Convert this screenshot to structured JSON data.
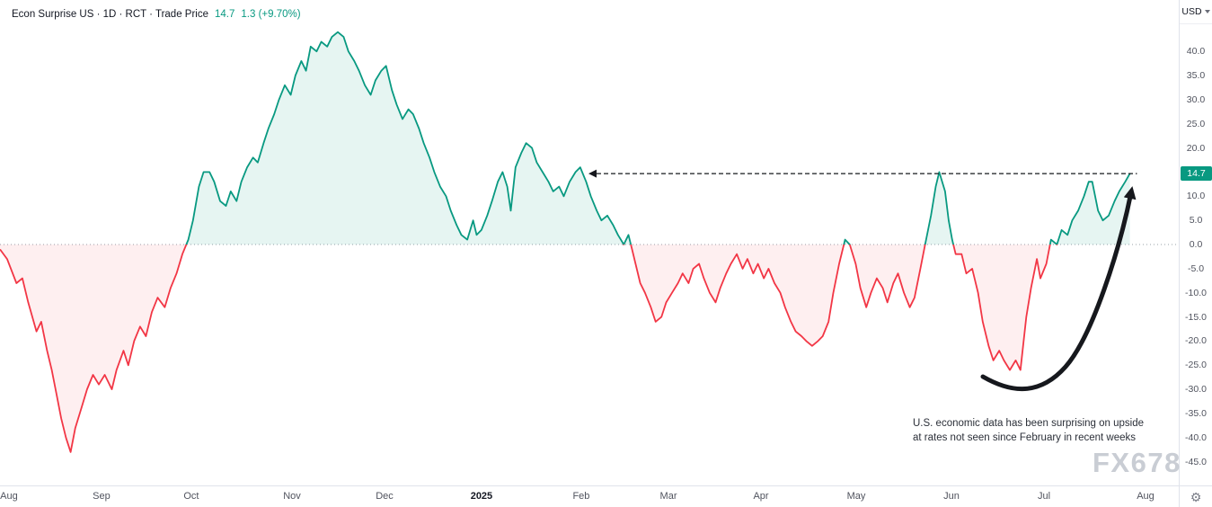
{
  "legend": {
    "title": "Econ Surprise US · 1D · RCT · Trade Price",
    "price": "14.7",
    "change": "1.3 (+9.70%)"
  },
  "price_axis": {
    "currency": "USD",
    "labels": [
      40,
      35,
      30,
      25,
      20,
      10,
      5,
      0,
      -5,
      -10,
      -15,
      -20,
      -25,
      -30,
      -35,
      -40,
      -45
    ]
  },
  "time_axis": {
    "labels": [
      {
        "label": "Aug",
        "pct": 0.76,
        "bold": false
      },
      {
        "label": "Sep",
        "pct": 8.61,
        "bold": false
      },
      {
        "label": "Oct",
        "pct": 16.23,
        "bold": false
      },
      {
        "label": "Nov",
        "pct": 24.77,
        "bold": false
      },
      {
        "label": "Dec",
        "pct": 32.62,
        "bold": false
      },
      {
        "label": "2025",
        "pct": 40.85,
        "bold": true
      },
      {
        "label": "Feb",
        "pct": 49.31,
        "bold": false
      },
      {
        "label": "Mar",
        "pct": 56.71,
        "bold": false
      },
      {
        "label": "Apr",
        "pct": 64.56,
        "bold": false
      },
      {
        "label": "May",
        "pct": 72.64,
        "bold": false
      },
      {
        "label": "Jun",
        "pct": 80.72,
        "bold": false
      },
      {
        "label": "Jul",
        "pct": 88.57,
        "bold": false
      },
      {
        "label": "Aug",
        "pct": 97.18,
        "bold": false
      }
    ]
  },
  "annotation": {
    "text": "U.S. economic data has been surprising on upside\nat rates not seen since February in recent weeks"
  },
  "watermark": "FX678",
  "colors": {
    "up": "#089981",
    "down": "#f23645",
    "up_fill": "rgba(8,153,129,0.10)",
    "down_fill": "rgba(242,54,69,0.08)"
  },
  "chart_data": {
    "type": "area",
    "style": "baseline",
    "title": "Econ Surprise US",
    "interval": "1D",
    "source": "RCT",
    "series_name": "Trade Price",
    "currency": "USD",
    "last_value": 14.7,
    "change": 1.3,
    "change_pct": "+9.70%",
    "baseline": 0,
    "ylim": [
      -47,
      46
    ],
    "y_ticks": [
      40,
      35,
      30,
      25,
      20,
      15,
      10,
      5,
      0,
      -5,
      -10,
      -15,
      -20,
      -25,
      -30,
      -35,
      -40,
      -45
    ],
    "x_range": [
      "Aug 2024",
      "Aug 2025"
    ],
    "x_unit": "percent_of_visible_time_axis",
    "hline": {
      "value": 14.7,
      "from_pct": 50,
      "to_pct": 96.6,
      "style": "dashed"
    },
    "points": [
      [
        0,
        -1
      ],
      [
        0.6,
        -3
      ],
      [
        1.4,
        -8
      ],
      [
        1.9,
        -7
      ],
      [
        2.4,
        -12
      ],
      [
        3.1,
        -18
      ],
      [
        3.5,
        -16
      ],
      [
        4,
        -22
      ],
      [
        4.4,
        -26
      ],
      [
        4.8,
        -31
      ],
      [
        5.2,
        -36
      ],
      [
        5.6,
        -40
      ],
      [
        6,
        -43
      ],
      [
        6.4,
        -38
      ],
      [
        6.9,
        -34
      ],
      [
        7.4,
        -30
      ],
      [
        7.9,
        -27
      ],
      [
        8.4,
        -29
      ],
      [
        8.9,
        -27
      ],
      [
        9.5,
        -30
      ],
      [
        9.9,
        -26
      ],
      [
        10.5,
        -22
      ],
      [
        10.9,
        -25
      ],
      [
        11.4,
        -20
      ],
      [
        11.9,
        -17
      ],
      [
        12.4,
        -19
      ],
      [
        12.9,
        -14
      ],
      [
        13.4,
        -11
      ],
      [
        14,
        -13
      ],
      [
        14.5,
        -9
      ],
      [
        15,
        -6
      ],
      [
        15.5,
        -2
      ],
      [
        16,
        1
      ],
      [
        16.4,
        5
      ],
      [
        16.9,
        12
      ],
      [
        17.3,
        15
      ],
      [
        17.8,
        15
      ],
      [
        18.2,
        13
      ],
      [
        18.7,
        9
      ],
      [
        19.2,
        8
      ],
      [
        19.6,
        11
      ],
      [
        20.1,
        9
      ],
      [
        20.5,
        13
      ],
      [
        21,
        16
      ],
      [
        21.5,
        18
      ],
      [
        21.9,
        17
      ],
      [
        22.4,
        21
      ],
      [
        22.8,
        24
      ],
      [
        23.3,
        27
      ],
      [
        23.7,
        30
      ],
      [
        24.2,
        33
      ],
      [
        24.7,
        31
      ],
      [
        25.1,
        35
      ],
      [
        25.6,
        38
      ],
      [
        26,
        36
      ],
      [
        26.4,
        41
      ],
      [
        26.9,
        40
      ],
      [
        27.3,
        42
      ],
      [
        27.8,
        41
      ],
      [
        28.2,
        43
      ],
      [
        28.7,
        44
      ],
      [
        29.2,
        43
      ],
      [
        29.6,
        40
      ],
      [
        30.1,
        38
      ],
      [
        30.5,
        36
      ],
      [
        31,
        33
      ],
      [
        31.5,
        31
      ],
      [
        31.9,
        34
      ],
      [
        32.4,
        36
      ],
      [
        32.8,
        37
      ],
      [
        33.3,
        32
      ],
      [
        33.7,
        29
      ],
      [
        34.2,
        26
      ],
      [
        34.7,
        28
      ],
      [
        35.1,
        27
      ],
      [
        35.6,
        24
      ],
      [
        36,
        21
      ],
      [
        36.5,
        18
      ],
      [
        36.9,
        15
      ],
      [
        37.4,
        12
      ],
      [
        37.9,
        10
      ],
      [
        38.3,
        7
      ],
      [
        38.8,
        4
      ],
      [
        39.2,
        2
      ],
      [
        39.7,
        1
      ],
      [
        40.2,
        5
      ],
      [
        40.5,
        2
      ],
      [
        40.9,
        3
      ],
      [
        41.4,
        6
      ],
      [
        41.8,
        9
      ],
      [
        42.3,
        13
      ],
      [
        42.7,
        15
      ],
      [
        43.1,
        12
      ],
      [
        43.4,
        7
      ],
      [
        43.8,
        16
      ],
      [
        44.3,
        19
      ],
      [
        44.7,
        21
      ],
      [
        45.2,
        20
      ],
      [
        45.6,
        17
      ],
      [
        46.1,
        15
      ],
      [
        46.6,
        13
      ],
      [
        47,
        11
      ],
      [
        47.5,
        12
      ],
      [
        47.9,
        10
      ],
      [
        48.4,
        13
      ],
      [
        48.9,
        15
      ],
      [
        49.3,
        16
      ],
      [
        49.8,
        13
      ],
      [
        50.2,
        10
      ],
      [
        50.7,
        7
      ],
      [
        51.1,
        5
      ],
      [
        51.6,
        6
      ],
      [
        52.1,
        4
      ],
      [
        52.5,
        2
      ],
      [
        53,
        0
      ],
      [
        53.4,
        2
      ],
      [
        53.7,
        -1
      ],
      [
        54,
        -4
      ],
      [
        54.4,
        -8
      ],
      [
        54.8,
        -10
      ],
      [
        55.3,
        -13
      ],
      [
        55.7,
        -16
      ],
      [
        56.2,
        -15
      ],
      [
        56.6,
        -12
      ],
      [
        57.1,
        -10
      ],
      [
        57.6,
        -8
      ],
      [
        58,
        -6
      ],
      [
        58.5,
        -8
      ],
      [
        58.9,
        -5
      ],
      [
        59.4,
        -4
      ],
      [
        59.8,
        -7
      ],
      [
        60.3,
        -10
      ],
      [
        60.8,
        -12
      ],
      [
        61.2,
        -9
      ],
      [
        61.7,
        -6
      ],
      [
        62.1,
        -4
      ],
      [
        62.6,
        -2
      ],
      [
        63.1,
        -5
      ],
      [
        63.5,
        -3
      ],
      [
        64,
        -6
      ],
      [
        64.4,
        -4
      ],
      [
        64.9,
        -7
      ],
      [
        65.3,
        -5
      ],
      [
        65.8,
        -8
      ],
      [
        66.3,
        -10
      ],
      [
        66.7,
        -13
      ],
      [
        67.2,
        -16
      ],
      [
        67.6,
        -18
      ],
      [
        68.1,
        -19
      ],
      [
        68.5,
        -20
      ],
      [
        69,
        -21
      ],
      [
        69.5,
        -20
      ],
      [
        69.9,
        -19
      ],
      [
        70.4,
        -16
      ],
      [
        70.8,
        -10
      ],
      [
        71.3,
        -4
      ],
      [
        71.8,
        1
      ],
      [
        72.2,
        0
      ],
      [
        72.7,
        -4
      ],
      [
        73.1,
        -9
      ],
      [
        73.6,
        -13
      ],
      [
        74,
        -10
      ],
      [
        74.5,
        -7
      ],
      [
        75,
        -9
      ],
      [
        75.4,
        -12
      ],
      [
        75.9,
        -8
      ],
      [
        76.3,
        -6
      ],
      [
        76.8,
        -10
      ],
      [
        77.3,
        -13
      ],
      [
        77.7,
        -11
      ],
      [
        78.2,
        -5
      ],
      [
        78.6,
        0
      ],
      [
        79.1,
        6
      ],
      [
        79.5,
        12
      ],
      [
        79.8,
        15
      ],
      [
        80.3,
        11
      ],
      [
        80.6,
        5
      ],
      [
        80.9,
        1
      ],
      [
        81.2,
        -2
      ],
      [
        81.7,
        -2
      ],
      [
        82.1,
        -6
      ],
      [
        82.6,
        -5
      ],
      [
        83.1,
        -10
      ],
      [
        83.5,
        -16
      ],
      [
        84,
        -21
      ],
      [
        84.4,
        -24
      ],
      [
        84.9,
        -22
      ],
      [
        85.3,
        -24
      ],
      [
        85.8,
        -26
      ],
      [
        86.3,
        -24
      ],
      [
        86.7,
        -26
      ],
      [
        87.2,
        -15
      ],
      [
        87.6,
        -9
      ],
      [
        88.1,
        -3
      ],
      [
        88.4,
        -7
      ],
      [
        88.9,
        -4
      ],
      [
        89.3,
        1
      ],
      [
        89.8,
        0
      ],
      [
        90.2,
        3
      ],
      [
        90.7,
        2
      ],
      [
        91.1,
        5
      ],
      [
        91.6,
        7
      ],
      [
        92.1,
        10
      ],
      [
        92.5,
        13
      ],
      [
        92.8,
        13
      ],
      [
        93.3,
        7
      ],
      [
        93.7,
        5
      ],
      [
        94.2,
        6
      ],
      [
        94.7,
        9
      ],
      [
        95.1,
        11
      ],
      [
        95.6,
        13
      ],
      [
        96,
        14.7
      ]
    ]
  }
}
